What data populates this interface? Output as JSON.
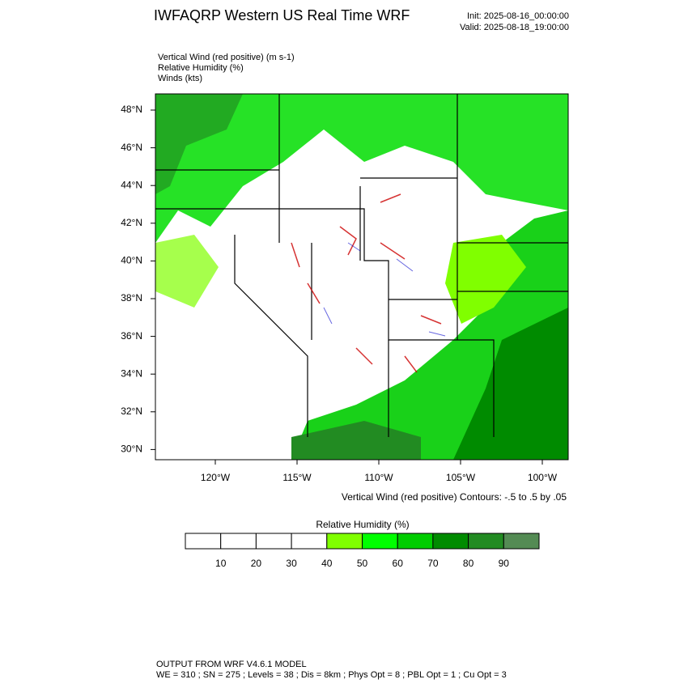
{
  "header": {
    "title": "IWFAQRP Western US Real Time WRF",
    "init": "Init: 2025-08-16_00:00:00",
    "valid": "Valid: 2025-08-18_19:00:00"
  },
  "fields": [
    "Vertical Wind (red positive)   (m s-1)",
    "Relative Humidity   (%)",
    "Winds   (kts)"
  ],
  "map": {
    "lat_labels": [
      "48°N",
      "46°N",
      "44°N",
      "42°N",
      "40°N",
      "38°N",
      "36°N",
      "34°N",
      "32°N",
      "30°N"
    ],
    "lon_labels": [
      "120°W",
      "115°W",
      "110°W",
      "105°W",
      "100°W"
    ],
    "contour_note": "Vertical Wind (red positive) Contours: -.5 to .5 by .05"
  },
  "colorbar": {
    "title": "Relative Humidity   (%)",
    "ticks": [
      10,
      20,
      30,
      40,
      50,
      60,
      70,
      80,
      90
    ],
    "colors": [
      "#ffffff",
      "#ffffff",
      "#ffffff",
      "#ffffff",
      "#80ff00",
      "#00ff00",
      "#00cd00",
      "#008b00",
      "#228b22",
      "#548b54"
    ]
  },
  "footer": [
    "OUTPUT FROM WRF V4.6.1 MODEL",
    "WE = 310 ; SN = 275 ; Levels = 38 ; Dis = 8km ; Phys Opt = 8 ; PBL Opt = 1 ; Cu Opt = 3"
  ]
}
